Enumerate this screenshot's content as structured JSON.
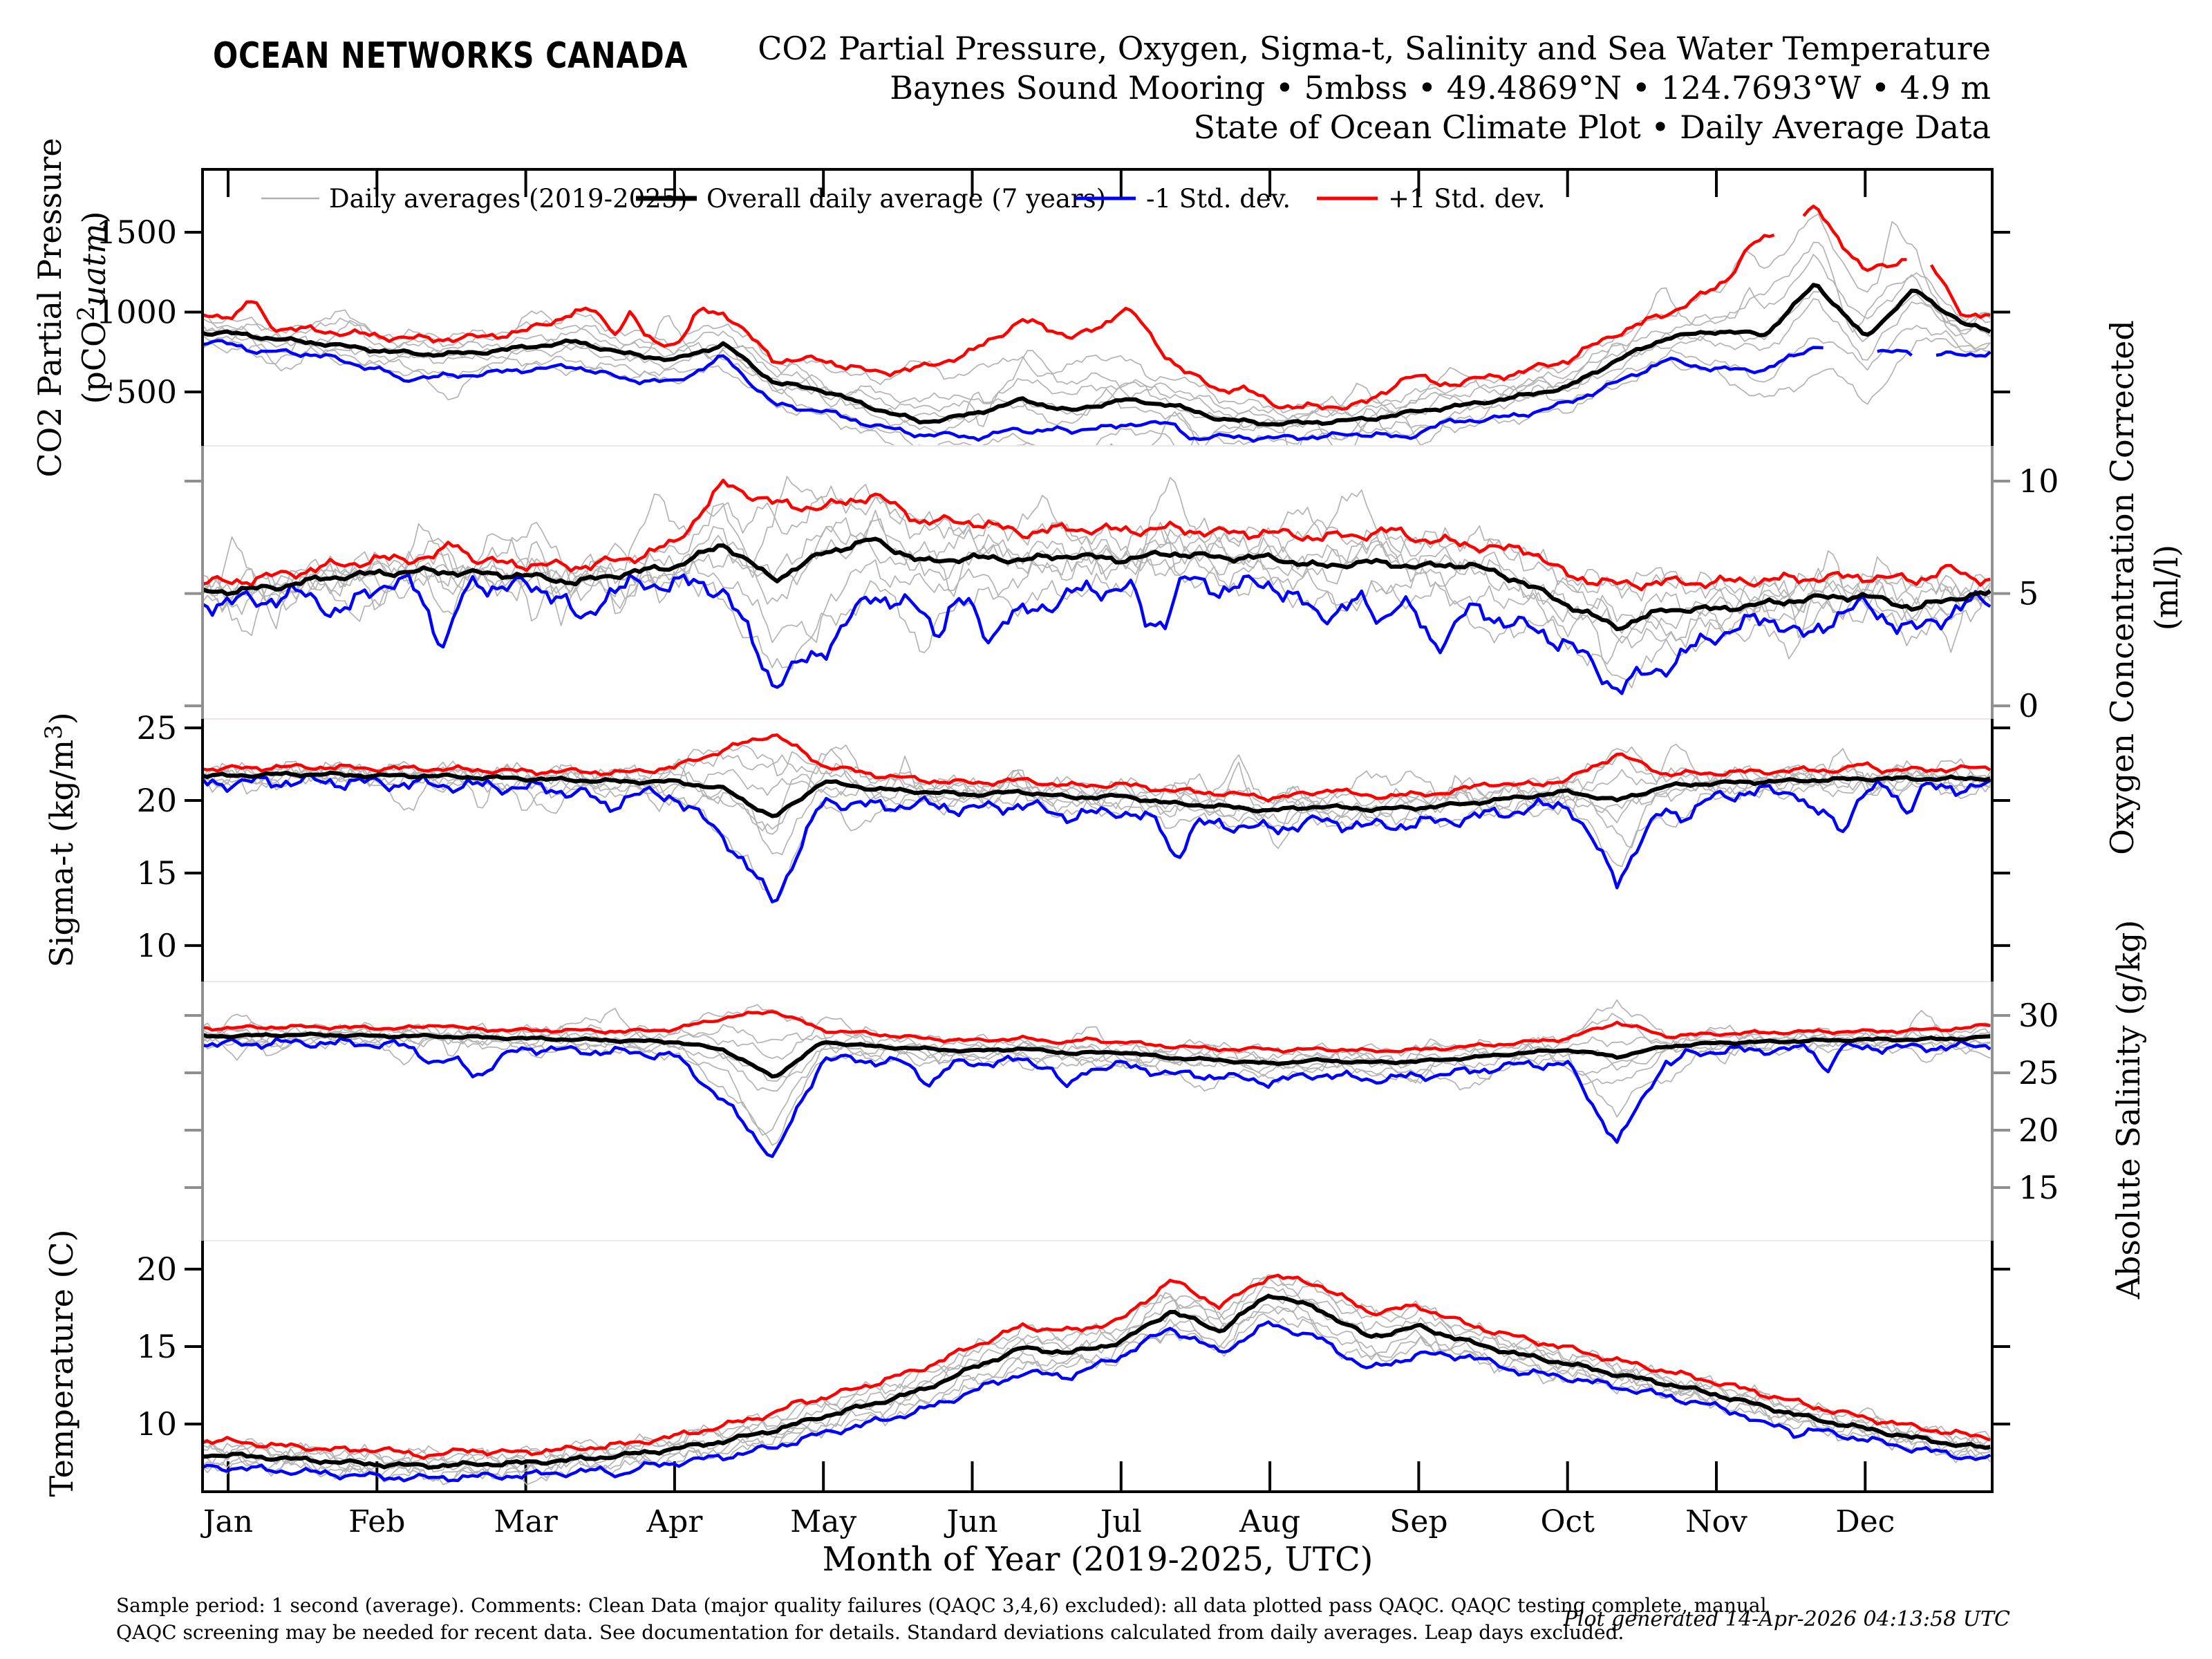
{
  "header": {
    "logo": "OCEAN NETWORKS CANADA",
    "logo_color": "#1B95B8",
    "title1": "CO2 Partial Pressure, Oxygen, Sigma-t, Salinity and Sea Water Temperature",
    "title2": "Baynes Sound Mooring • 5mbss • 49.4869°N • 124.7693°W • 4.9 m",
    "title3": "State of Ocean Climate Plot • Daily Average Data"
  },
  "legend": {
    "items": [
      {
        "label": "Daily averages (2019-2025)",
        "color": "#b0b0b0",
        "width": 2.5
      },
      {
        "label": "Overall daily average (7 years)",
        "color": "#000000",
        "width": 7
      },
      {
        "label": "-1 Std. dev.",
        "color": "#0000ff",
        "width": 5
      },
      {
        "label": "+1 Std. dev.",
        "color": "#ff0000",
        "width": 5
      }
    ]
  },
  "plot": {
    "months": [
      "Jan",
      "Feb",
      "Mar",
      "Apr",
      "May",
      "Jun",
      "Jul",
      "Aug",
      "Sep",
      "Oct",
      "Nov",
      "Dec"
    ],
    "xaxis_title": "Month of Year (2019-2025, UTC)",
    "years_count": 7
  },
  "chart_data": [
    {
      "type": "line",
      "name": "co2-partial-pressure",
      "ylabel": {
        "line1": "CO2 Partial Pressure",
        "line2_pre": "(pCO",
        "line2_sup": "2",
        "line2_italic": "uatm",
        "line2_post": ")"
      },
      "axis_side": "left",
      "axis_color": "#000000",
      "ticks": [
        {
          "value": 500,
          "label": "500"
        },
        {
          "value": 1000,
          "label": "1000"
        },
        {
          "value": 1500,
          "label": "1500"
        }
      ],
      "ylim": [
        162,
        1894
      ],
      "x_months": {
        "start": 0,
        "end": 12,
        "points": 37
      },
      "series": {
        "mean": [
          870,
          830,
          800,
          760,
          735,
          745,
          780,
          815,
          740,
          700,
          800,
          560,
          510,
          400,
          310,
          360,
          450,
          380,
          450,
          420,
          330,
          300,
          310,
          330,
          380,
          420,
          470,
          530,
          700,
          840,
          880,
          860,
          1180,
          840,
          1140,
          920,
          860
        ],
        "plus": [
          980,
          900,
          880,
          850,
          830,
          840,
          880,
          1000,
          840,
          800,
          1000,
          700,
          700,
          620,
          650,
          750,
          950,
          850,
          900,
          700,
          480,
          420,
          400,
          430,
          520,
          570,
          620,
          700,
          870,
          990,
          1150,
          1450,
          1650,
          1250,
          1350,
          960,
          980
        ],
        "minus": [
          805,
          760,
          720,
          640,
          590,
          610,
          640,
          660,
          580,
          560,
          720,
          420,
          380,
          290,
          230,
          230,
          300,
          250,
          330,
          300,
          220,
          210,
          220,
          240,
          290,
          320,
          350,
          430,
          560,
          700,
          640,
          640,
          790,
          760,
          740,
          730,
          760
        ]
      },
      "gaps": {
        "plus": [
          [
            10.42,
            10.58
          ],
          [
            11.28,
            11.44
          ]
        ],
        "minus": [
          [
            10.75,
            11.05
          ],
          [
            11.33,
            11.45
          ]
        ]
      },
      "texture": {
        "n_mean": 15,
        "n_plus": 30,
        "n_minus": 22,
        "n_gray": 40,
        "sp_plus": [
          9,
          160,
          1
        ],
        "sp_minus": [
          7,
          70,
          -1
        ],
        "sp_gray": [
          10,
          220,
          0
        ]
      }
    },
    {
      "type": "line",
      "name": "oxygen-concentration",
      "ylabel": {
        "line1": "Oxygen Concentration Corrected",
        "line2": "(ml/l)"
      },
      "axis_side": "right",
      "axis_color": "#808080",
      "ticks": [
        {
          "value": 0,
          "label": "0"
        },
        {
          "value": 5,
          "label": "5"
        },
        {
          "value": 10,
          "label": "10"
        }
      ],
      "ylim": [
        -0.58,
        11.57
      ],
      "x_months": {
        "start": 0,
        "end": 12,
        "points": 37
      },
      "series": {
        "mean": [
          5.1,
          5.3,
          5.7,
          5.9,
          6.0,
          5.9,
          5.8,
          5.5,
          5.9,
          6.2,
          7.2,
          5.6,
          6.8,
          7.4,
          6.4,
          6.6,
          6.5,
          6.7,
          6.5,
          6.8,
          6.6,
          6.6,
          6.2,
          6.4,
          6.2,
          6.3,
          5.6,
          4.5,
          3.5,
          4.3,
          4.3,
          4.55,
          4.8,
          4.9,
          4.35,
          4.9,
          5.1
        ],
        "plus": [
          5.5,
          5.8,
          6.2,
          6.5,
          6.6,
          6.4,
          6.3,
          6.2,
          6.5,
          7.2,
          9.9,
          9.0,
          8.8,
          9.4,
          8.2,
          8.2,
          7.7,
          7.9,
          7.8,
          7.9,
          7.7,
          7.7,
          7.5,
          7.6,
          7.4,
          7.2,
          6.8,
          5.8,
          5.4,
          5.5,
          5.5,
          5.6,
          5.7,
          5.75,
          5.6,
          5.6,
          5.7
        ],
        "minus": [
          4.6,
          4.8,
          5.2,
          5.45,
          5.5,
          5.4,
          5.3,
          5.0,
          5.3,
          5.5,
          5.2,
          1.0,
          2.5,
          5.0,
          4.2,
          4.8,
          4.0,
          5.0,
          5.3,
          5.8,
          5.2,
          5.5,
          4.0,
          4.8,
          4.8,
          4.4,
          3.6,
          2.8,
          0.8,
          1.8,
          3.2,
          3.9,
          4.3,
          4.4,
          3.3,
          4.5,
          4.8
        ]
      },
      "gaps": null,
      "texture": {
        "n_mean": 0.18,
        "n_plus": 0.3,
        "n_minus": 0.55,
        "n_gray": 0.7,
        "sp_plus": [
          5,
          0.7,
          1
        ],
        "sp_minus": [
          11,
          2.2,
          -1
        ],
        "sp_gray": [
          9,
          2.2,
          0
        ]
      }
    },
    {
      "type": "line",
      "name": "sigma-t",
      "ylabel": {
        "pre": "Sigma-t (kg/m",
        "sup": "3",
        "post": ")"
      },
      "axis_side": "left",
      "axis_color": "#000000",
      "ticks": [
        {
          "value": 10,
          "label": "10"
        },
        {
          "value": 15,
          "label": "15"
        },
        {
          "value": 20,
          "label": "20"
        },
        {
          "value": 25,
          "label": "25"
        }
      ],
      "ylim": [
        7.52,
        25.62
      ],
      "x_months": {
        "start": 0,
        "end": 12,
        "points": 37
      },
      "series": {
        "mean": [
          21.7,
          21.8,
          21.8,
          21.7,
          21.7,
          21.6,
          21.5,
          21.4,
          21.3,
          21.3,
          20.8,
          18.8,
          21.3,
          20.8,
          20.6,
          20.4,
          20.6,
          20.2,
          20.3,
          19.8,
          19.6,
          19.3,
          19.6,
          19.4,
          19.5,
          19.8,
          20.2,
          20.6,
          20.0,
          21.0,
          21.2,
          21.3,
          21.4,
          21.5,
          21.5,
          21.5,
          21.6
        ],
        "plus": [
          22.2,
          22.3,
          22.3,
          22.2,
          22.2,
          22.1,
          22.0,
          22.0,
          21.9,
          22.3,
          23.5,
          24.6,
          22.4,
          21.8,
          21.4,
          21.2,
          21.4,
          21.0,
          21.1,
          20.7,
          20.5,
          20.2,
          20.5,
          20.3,
          20.4,
          20.7,
          21.0,
          21.4,
          23.2,
          21.8,
          21.9,
          22.0,
          22.1,
          22.1,
          22.1,
          22.2,
          22.3
        ],
        "minus": [
          21.2,
          21.3,
          21.3,
          21.2,
          21.1,
          21.0,
          20.9,
          20.6,
          20.5,
          20.3,
          17.5,
          13.0,
          20.0,
          19.6,
          19.7,
          19.4,
          19.7,
          18.9,
          19.3,
          18.2,
          18.4,
          18.0,
          18.6,
          18.2,
          18.4,
          18.8,
          19.3,
          19.8,
          14.5,
          20.0,
          20.4,
          20.6,
          20.7,
          20.8,
          20.8,
          20.9,
          21.1
        ]
      },
      "gaps": null,
      "texture": {
        "n_mean": 0.15,
        "n_plus": 0.25,
        "n_minus": 0.6,
        "n_gray": 0.7,
        "sp_plus": [
          3,
          0.6,
          1
        ],
        "sp_minus": [
          7,
          2.2,
          -1
        ],
        "sp_gray": [
          7,
          2.6,
          0
        ]
      }
    },
    {
      "type": "line",
      "name": "absolute-salinity",
      "ylabel": {
        "text": "Absolute Salinity (g/kg)"
      },
      "axis_side": "right",
      "axis_color": "#808080",
      "ticks": [
        {
          "value": 15,
          "label": "15"
        },
        {
          "value": 20,
          "label": "20"
        },
        {
          "value": 25,
          "label": "25"
        },
        {
          "value": 30,
          "label": "30"
        }
      ],
      "ylim": [
        10.36,
        32.95
      ],
      "x_months": {
        "start": 0,
        "end": 12,
        "points": 37
      },
      "series": {
        "mean": [
          28.2,
          28.3,
          28.3,
          28.2,
          28.2,
          28.1,
          28.0,
          27.9,
          27.8,
          27.7,
          27.0,
          24.6,
          27.7,
          27.3,
          27.1,
          26.9,
          27.1,
          26.7,
          26.8,
          26.3,
          26.1,
          25.8,
          26.1,
          25.9,
          26.0,
          26.3,
          26.7,
          27.0,
          26.4,
          27.3,
          27.6,
          27.7,
          27.8,
          27.9,
          27.9,
          28.0,
          28.3
        ],
        "plus": [
          28.9,
          29.0,
          29.0,
          28.9,
          28.9,
          28.8,
          28.7,
          28.7,
          28.6,
          28.8,
          29.8,
          30.4,
          28.7,
          28.4,
          28.0,
          27.8,
          28.0,
          27.6,
          27.7,
          27.3,
          27.1,
          26.8,
          27.1,
          26.9,
          27.0,
          27.3,
          27.6,
          28.0,
          29.4,
          28.2,
          28.4,
          28.5,
          28.6,
          28.6,
          28.7,
          28.9,
          29.4
        ],
        "minus": [
          27.5,
          27.6,
          27.6,
          27.5,
          27.4,
          27.3,
          27.2,
          26.9,
          26.8,
          26.5,
          22.5,
          17.6,
          26.3,
          26.0,
          26.1,
          25.8,
          26.1,
          25.2,
          25.7,
          24.9,
          24.7,
          24.2,
          24.9,
          24.4,
          24.7,
          25.1,
          25.7,
          25.8,
          18.8,
          26.5,
          26.9,
          27.0,
          27.1,
          27.2,
          27.2,
          27.3,
          27.5
        ]
      },
      "gaps": null,
      "texture": {
        "n_mean": 0.13,
        "n_plus": 0.2,
        "n_minus": 0.5,
        "n_gray": 0.6,
        "sp_plus": [
          3,
          0.5,
          1
        ],
        "sp_minus": [
          7,
          2.0,
          -1
        ],
        "sp_gray": [
          7,
          2.3,
          0
        ]
      }
    },
    {
      "type": "line",
      "name": "temperature",
      "ylabel": {
        "text": "Temperature (C)"
      },
      "axis_side": "left",
      "axis_color": "#000000",
      "ticks": [
        {
          "value": 10,
          "label": "10"
        },
        {
          "value": 15,
          "label": "15"
        },
        {
          "value": 20,
          "label": "20"
        }
      ],
      "ylim": [
        5.63,
        21.83
      ],
      "x_months": {
        "start": 0,
        "end": 12,
        "points": 37
      },
      "series": {
        "mean": [
          8.0,
          7.8,
          7.6,
          7.4,
          7.3,
          7.4,
          7.5,
          7.7,
          8.0,
          8.4,
          8.9,
          9.6,
          10.5,
          11.3,
          12.2,
          13.6,
          14.9,
          14.6,
          15.3,
          17.3,
          16.0,
          18.4,
          17.4,
          15.6,
          16.3,
          15.3,
          14.5,
          13.9,
          13.2,
          12.6,
          11.9,
          11.1,
          10.3,
          9.7,
          9.1,
          8.6,
          8.3
        ],
        "plus": [
          8.9,
          8.6,
          8.4,
          8.1,
          8.0,
          8.1,
          8.2,
          8.4,
          8.7,
          9.2,
          9.9,
          10.7,
          11.7,
          12.6,
          13.6,
          15.0,
          16.3,
          16.0,
          16.7,
          19.3,
          17.6,
          19.6,
          19.0,
          17.2,
          17.6,
          16.4,
          15.6,
          14.9,
          14.1,
          13.4,
          12.7,
          11.9,
          11.1,
          10.4,
          9.8,
          9.3,
          9.0
        ],
        "minus": [
          7.2,
          7.0,
          6.8,
          6.6,
          6.5,
          6.6,
          6.7,
          6.9,
          7.1,
          7.5,
          7.9,
          8.5,
          9.4,
          10.1,
          10.9,
          12.1,
          13.3,
          13.1,
          14.4,
          16.2,
          14.6,
          16.5,
          15.5,
          13.5,
          14.5,
          14.4,
          13.4,
          13.0,
          12.4,
          11.8,
          11.1,
          10.3,
          9.6,
          9.0,
          8.4,
          7.9,
          7.5
        ]
      },
      "gaps": null,
      "texture": {
        "n_mean": 0.18,
        "n_plus": 0.25,
        "n_minus": 0.3,
        "n_gray": 0.6,
        "sp_plus": [
          3,
          0.6,
          1
        ],
        "sp_minus": [
          3,
          0.6,
          -1
        ],
        "sp_gray": [
          5,
          1.0,
          0
        ]
      }
    }
  ],
  "footer": {
    "line1": "Sample period: 1 second (average). Comments: Clean Data (major quality failures (QAQC 3,4,6) excluded): all data plotted pass QAQC. QAQC testing complete, manual",
    "line2": "QAQC screening may be needed for recent data. See documentation for details. Standard deviations calculated from daily averages. Leap days excluded.",
    "generated": "Plot generated 14-Apr-2026 04:13:58 UTC"
  }
}
